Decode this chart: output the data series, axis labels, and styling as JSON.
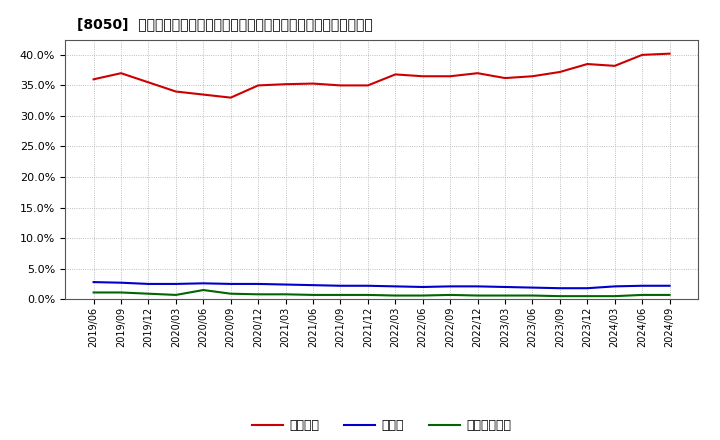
{
  "title": "[8050]  自己資本、のれん、繰延税金資産の総資産に対する比率の推移",
  "x_labels": [
    "2019/06",
    "2019/09",
    "2019/12",
    "2020/03",
    "2020/06",
    "2020/09",
    "2020/12",
    "2021/03",
    "2021/06",
    "2021/09",
    "2021/12",
    "2022/03",
    "2022/06",
    "2022/09",
    "2022/12",
    "2023/03",
    "2023/06",
    "2023/09",
    "2023/12",
    "2024/03",
    "2024/06",
    "2024/09"
  ],
  "jikoshihon": [
    36.0,
    37.0,
    35.5,
    34.0,
    33.5,
    33.0,
    35.0,
    35.2,
    35.3,
    35.0,
    35.0,
    36.8,
    36.5,
    36.5,
    37.0,
    36.2,
    36.5,
    37.2,
    38.5,
    38.2,
    40.0,
    40.2
  ],
  "noren": [
    2.8,
    2.7,
    2.5,
    2.5,
    2.6,
    2.5,
    2.5,
    2.4,
    2.3,
    2.2,
    2.2,
    2.1,
    2.0,
    2.1,
    2.1,
    2.0,
    1.9,
    1.8,
    1.8,
    2.1,
    2.2,
    2.2
  ],
  "kuenzeichizei": [
    1.1,
    1.1,
    0.9,
    0.7,
    1.5,
    0.9,
    0.8,
    0.8,
    0.7,
    0.7,
    0.7,
    0.6,
    0.6,
    0.7,
    0.6,
    0.6,
    0.6,
    0.5,
    0.5,
    0.5,
    0.7,
    0.7
  ],
  "jikoshihon_color": "#cc0000",
  "noren_color": "#0000cc",
  "kuenzeichizei_color": "#006600",
  "background_color": "#ffffff",
  "plot_bg_color": "#ffffff",
  "grid_color": "#aaaaaa",
  "ylim": [
    0,
    42.5
  ],
  "yticks": [
    0.0,
    5.0,
    10.0,
    15.0,
    20.0,
    25.0,
    30.0,
    35.0,
    40.0
  ],
  "legend_labels": [
    "自己資本",
    "のれん",
    "繰延税金資産"
  ]
}
